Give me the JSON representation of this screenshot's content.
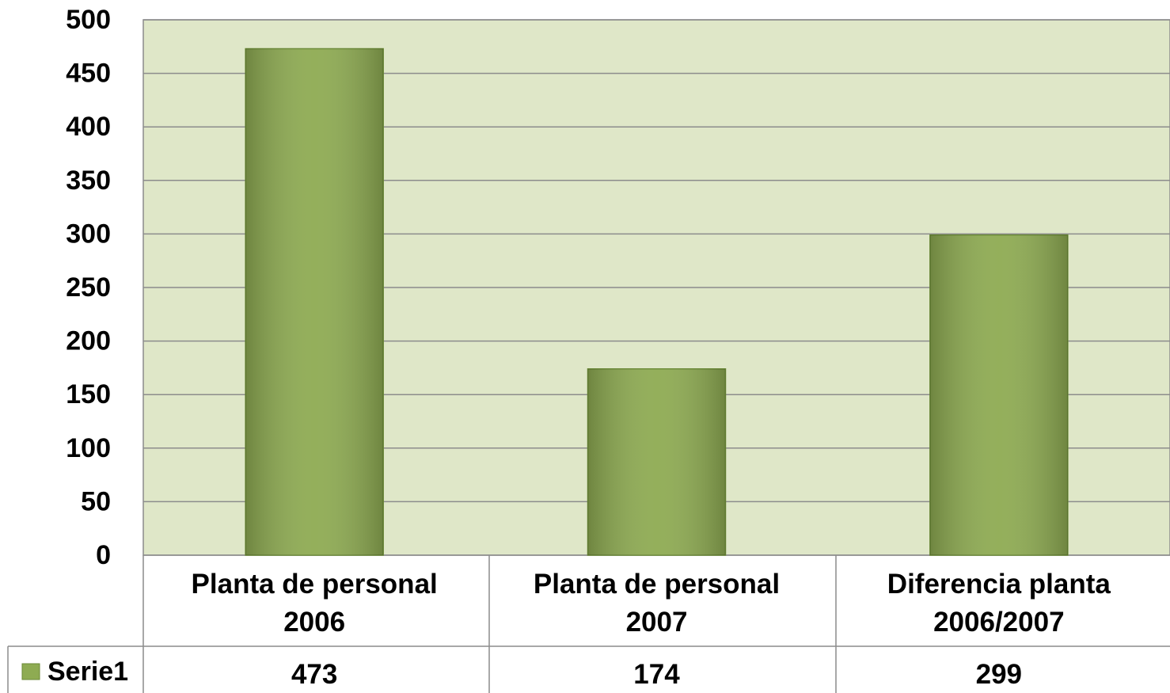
{
  "chart_data": {
    "type": "bar",
    "categories": [
      "Planta de personal 2006",
      "Planta de personal 2007",
      "Diferencia planta 2006/2007"
    ],
    "series": [
      {
        "name": "Serie1",
        "color": "#8eab52",
        "values": [
          473,
          174,
          299
        ]
      }
    ],
    "ylim": [
      0,
      500
    ],
    "yticks": [
      0,
      50,
      100,
      150,
      200,
      250,
      300,
      350,
      400,
      450,
      500
    ],
    "grid": true,
    "data_table": true
  }
}
